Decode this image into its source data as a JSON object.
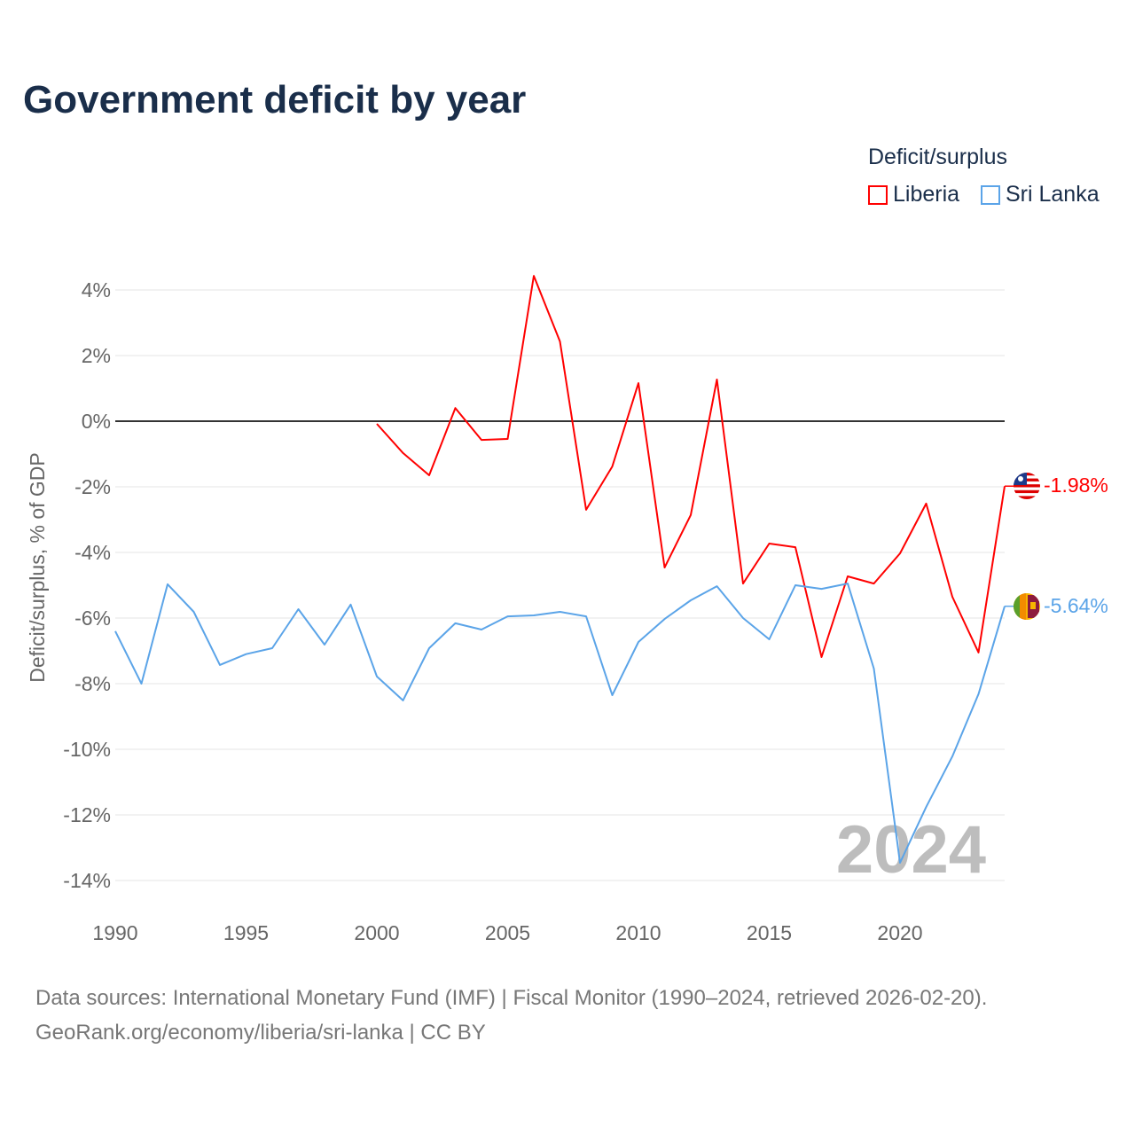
{
  "chart_data": {
    "type": "line",
    "title": "Government deficit by year",
    "ylabel": "Deficit/surplus, % of GDP",
    "xlabel": "",
    "xlim": [
      1990,
      2024
    ],
    "ylim": [
      -14,
      4
    ],
    "x_ticks": [
      1990,
      1995,
      2000,
      2005,
      2010,
      2015,
      2020
    ],
    "x_tick_labels": [
      "1990",
      "1995",
      "2000",
      "2005",
      "2010",
      "2015",
      "2020"
    ],
    "y_ticks": [
      4,
      2,
      0,
      -2,
      -4,
      -6,
      -8,
      -10,
      -12,
      -14
    ],
    "y_tick_labels": [
      "4%",
      "2%",
      "0%",
      "-2%",
      "-4%",
      "-6%",
      "-8%",
      "-10%",
      "-12%",
      "-14%"
    ],
    "grid": true,
    "legend_title": "Deficit/surplus",
    "legend_position": "top-right",
    "year_watermark": "2024",
    "series": [
      {
        "name": "Liberia",
        "color": "#ff0000",
        "end_label": "-1.98%",
        "x": [
          2000,
          2001,
          2002,
          2003,
          2004,
          2005,
          2006,
          2007,
          2008,
          2009,
          2010,
          2011,
          2012,
          2013,
          2014,
          2015,
          2016,
          2017,
          2018,
          2019,
          2020,
          2021,
          2022,
          2023,
          2024
        ],
        "values": [
          -0.08,
          -0.97,
          -1.65,
          0.4,
          -0.57,
          -0.54,
          4.43,
          2.43,
          -2.7,
          -1.38,
          1.16,
          -4.46,
          -2.86,
          1.27,
          -4.95,
          -3.73,
          -3.84,
          -7.19,
          -4.73,
          -4.95,
          -4.03,
          -2.51,
          -5.35,
          -7.05,
          -1.98
        ]
      },
      {
        "name": "Sri Lanka",
        "color": "#5ba4e8",
        "end_label": "-5.64%",
        "x": [
          1990,
          1991,
          1992,
          1993,
          1994,
          1995,
          1996,
          1997,
          1998,
          1999,
          2000,
          2001,
          2002,
          2003,
          2004,
          2005,
          2006,
          2007,
          2008,
          2009,
          2010,
          2011,
          2012,
          2013,
          2014,
          2015,
          2016,
          2017,
          2018,
          2019,
          2020,
          2021,
          2022,
          2023,
          2024
        ],
        "values": [
          -6.4,
          -8.0,
          -4.97,
          -5.81,
          -7.43,
          -7.1,
          -6.92,
          -5.73,
          -6.81,
          -5.59,
          -7.78,
          -8.51,
          -6.92,
          -6.16,
          -6.35,
          -5.95,
          -5.92,
          -5.81,
          -5.95,
          -8.35,
          -6.73,
          -6.03,
          -5.46,
          -5.03,
          -6.0,
          -6.65,
          -5.0,
          -5.11,
          -4.95,
          -7.54,
          -13.46,
          -11.76,
          -10.22,
          -8.32,
          -5.64
        ]
      }
    ]
  },
  "footer": {
    "line1": "Data sources: International Monetary Fund (IMF) | Fiscal Monitor (1990–2024, retrieved 2026-02-20).",
    "line2": "GeoRank.org/economy/liberia/sri-lanka | CC BY"
  }
}
